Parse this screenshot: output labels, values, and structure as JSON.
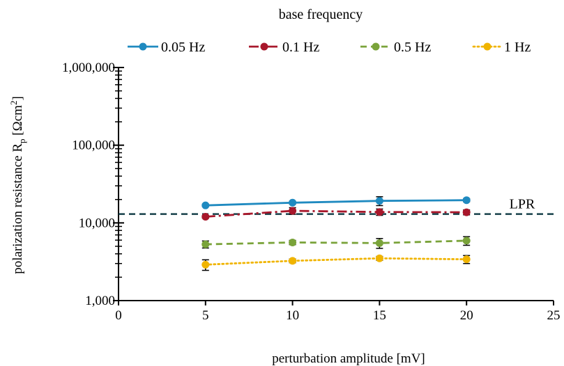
{
  "chart_data": {
    "type": "line",
    "legend_title": "base frequency",
    "legend_position": "top",
    "xlabel": "perturbation amplitude [mV]",
    "ylabel_main": "polarization resistance R",
    "ylabel_sub": "p",
    "ylabel_unit_open": " [Ωcm",
    "ylabel_unit_sup": "2",
    "ylabel_unit_close": "]",
    "xlim": [
      0,
      25
    ],
    "ylim": [
      1000,
      1000000
    ],
    "y_scale": "log",
    "grid": false,
    "x_ticks": [
      0,
      5,
      10,
      15,
      20,
      25
    ],
    "x_tick_labels": [
      "0",
      "5",
      "10",
      "15",
      "20",
      "25"
    ],
    "y_ticks": [
      1000,
      10000,
      100000,
      1000000
    ],
    "y_tick_labels": [
      "1,000",
      "10,000",
      "100,000",
      "1,000,000"
    ],
    "series": [
      {
        "name": "0.05 Hz",
        "color": "#1f8ac0",
        "dash": "solid",
        "x": [
          5,
          10,
          15,
          20
        ],
        "y": [
          16800,
          18200,
          19200,
          19600
        ],
        "err": [
          600,
          800,
          2500,
          900
        ]
      },
      {
        "name": "0.1 Hz",
        "color": "#a8172b",
        "dash": "dashdot",
        "x": [
          5,
          10,
          15,
          20
        ],
        "y": [
          12000,
          14300,
          13800,
          13700
        ],
        "err": [
          500,
          1400,
          1300,
          1000
        ]
      },
      {
        "name": "0.5 Hz",
        "color": "#7aa33a",
        "dash": "dash",
        "x": [
          5,
          10,
          15,
          20
        ],
        "y": [
          5300,
          5600,
          5500,
          5900
        ],
        "err": [
          550,
          350,
          800,
          750
        ]
      },
      {
        "name": "1 Hz",
        "color": "#f0b400",
        "dash": "dot",
        "x": [
          5,
          10,
          15,
          20
        ],
        "y": [
          2900,
          3250,
          3500,
          3400
        ],
        "err": [
          450,
          180,
          200,
          400
        ]
      }
    ],
    "reference_line": {
      "label": "LPR",
      "value": 13000,
      "color": "#17404a"
    }
  }
}
